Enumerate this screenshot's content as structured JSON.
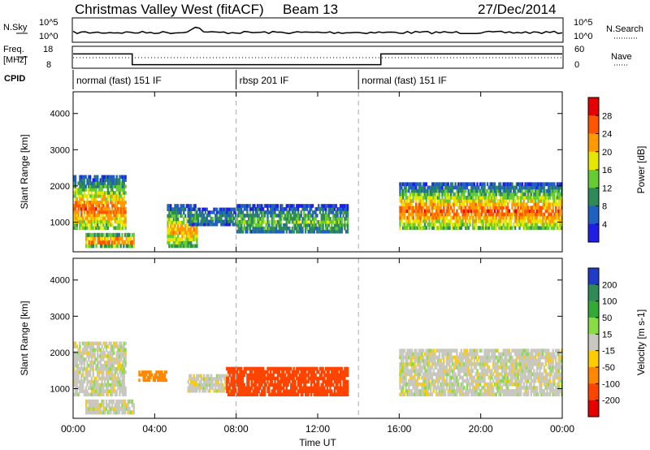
{
  "header": {
    "title": "Christmas Valley West (fitACF)",
    "beam": "Beam 13",
    "date": "27/Dec/2014"
  },
  "summary_panel": {
    "nsky_label": "N.Sky",
    "nsky_ticks": [
      "10^5",
      "10^0"
    ],
    "nsearch_label": "N.Search",
    "nsearch_ticks": [
      "10^5",
      "10^0"
    ],
    "freq_label_1": "Freq.",
    "freq_label_2": "[MHz]",
    "freq_ticks": [
      "18",
      "8"
    ],
    "nave_label": "Nave",
    "nave_ticks": [
      "60",
      "0"
    ],
    "cpid_label": "CPID",
    "modes": [
      {
        "label": "normal (fast) 151 IF",
        "start_hour": 0,
        "end_hour": 8
      },
      {
        "label": "rbsp 201 IF",
        "start_hour": 8,
        "end_hour": 14
      },
      {
        "label": "normal (fast) 151 IF",
        "start_hour": 14,
        "end_hour": 24
      }
    ],
    "freq_steps": [
      {
        "from_hour": 0,
        "to_hour": 2.9,
        "mhz": 16
      },
      {
        "from_hour": 2.9,
        "to_hour": 15.1,
        "mhz": 10
      },
      {
        "from_hour": 15.1,
        "to_hour": 24,
        "mhz": 16
      }
    ]
  },
  "chart_data": [
    {
      "type": "heatmap",
      "title": "Power",
      "ylabel": "Slant Range [km]",
      "colorbar_label": "Power [dB]",
      "y_ticks": [
        "1000",
        "2000",
        "3000",
        "4000"
      ],
      "ylim": [
        180,
        4600
      ],
      "xlim": [
        0,
        24
      ],
      "colorbar_ticks": [
        "4",
        "8",
        "12",
        "16",
        "20",
        "24",
        "28"
      ],
      "colorbar_colors": [
        "#1e1ee6",
        "#2060c0",
        "#2e8b57",
        "#66cc33",
        "#e6e600",
        "#ff9900",
        "#ff5500",
        "#e60000"
      ],
      "regions": [
        {
          "t0": 0.0,
          "t1": 2.6,
          "r_low": 800,
          "r_high": 2300,
          "level": 6
        },
        {
          "t0": 0.6,
          "t1": 3.0,
          "r_low": 300,
          "r_high": 700,
          "level": 6
        },
        {
          "t0": 4.6,
          "t1": 6.1,
          "r_low": 300,
          "r_high": 1500,
          "level": 5
        },
        {
          "t0": 5.6,
          "t1": 8.0,
          "r_low": 900,
          "r_high": 1400,
          "level": 2
        },
        {
          "t0": 8.0,
          "t1": 13.5,
          "r_low": 700,
          "r_high": 1500,
          "level": 3
        },
        {
          "t0": 16.0,
          "t1": 24.0,
          "r_low": 800,
          "r_high": 2100,
          "level": 6
        }
      ]
    },
    {
      "type": "heatmap",
      "title": "Velocity",
      "ylabel": "Slant Range [km]",
      "xlabel": "Time UT",
      "colorbar_label": "Velocity [m s-1]",
      "y_ticks": [
        "1000",
        "2000",
        "3000",
        "4000"
      ],
      "ylim": [
        180,
        4600
      ],
      "xlim": [
        0,
        24
      ],
      "x_ticks": [
        "00:00",
        "04:00",
        "08:00",
        "12:00",
        "16:00",
        "20:00",
        "00:00"
      ],
      "colorbar_ticks": [
        "200",
        "100",
        "50",
        "15",
        "-15",
        "-50",
        "-100",
        "-200"
      ],
      "colorbar_colors": [
        "#1e3cc8",
        "#2e8b57",
        "#33aa33",
        "#88dd44",
        "#c8c8c0",
        "#ffcc00",
        "#ff8800",
        "#ff4400",
        "#e60000"
      ],
      "regions": [
        {
          "t0": 0.0,
          "t1": 2.6,
          "r_low": 800,
          "r_high": 2300,
          "value": 0
        },
        {
          "t0": 0.6,
          "t1": 3.0,
          "r_low": 300,
          "r_high": 700,
          "value": 0
        },
        {
          "t0": 3.2,
          "t1": 4.6,
          "r_low": 1200,
          "r_high": 1500,
          "value": -50
        },
        {
          "t0": 5.6,
          "t1": 8.0,
          "r_low": 900,
          "r_high": 1400,
          "value": 0
        },
        {
          "t0": 7.5,
          "t1": 13.5,
          "r_low": 800,
          "r_high": 1600,
          "value": -100
        },
        {
          "t0": 16.0,
          "t1": 24.0,
          "r_low": 800,
          "r_high": 2100,
          "value": 0
        }
      ]
    }
  ]
}
